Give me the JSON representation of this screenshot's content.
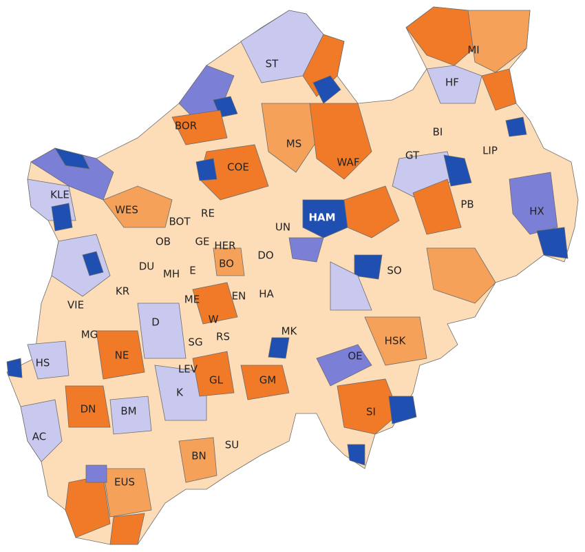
{
  "labels": [
    "MI",
    "ST",
    "HF",
    "BOR",
    "BI",
    "MS",
    "LIP",
    "GT",
    "WAF",
    "COE",
    "KLE",
    "PB",
    "WES",
    "RE",
    "HAM",
    "HX",
    "BOT",
    "UN",
    "OB",
    "GE",
    "HER",
    "DO",
    "DU",
    "BO",
    "SO",
    "MH",
    "E",
    "KR",
    "ME",
    "EN",
    "HA",
    "VIE",
    "W",
    "D",
    "MK",
    "MG",
    "HSK",
    "NE",
    "RS",
    "SG",
    "OE",
    "HS",
    "LEV",
    "GL",
    "GM",
    "K",
    "DN",
    "BM",
    "SI",
    "AC",
    "SU",
    "BN",
    "EUS"
  ]
}
